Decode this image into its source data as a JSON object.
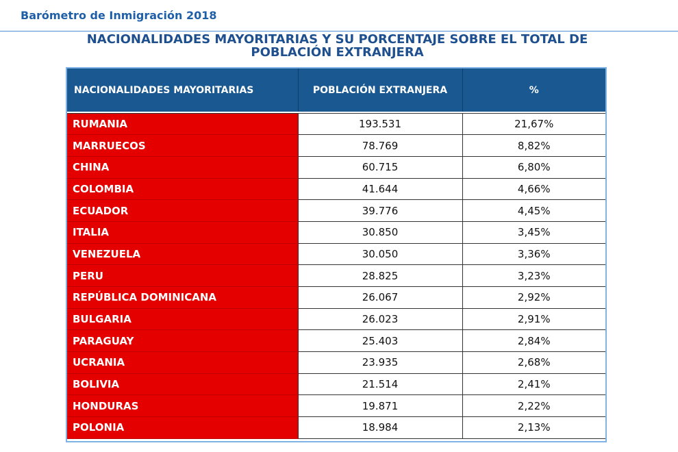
{
  "header": {
    "title": "Barómetro de Inmigración 2018"
  },
  "document": {
    "title_line1": "NACIONALIDADES MAYORITARIAS Y SU PORCENTAJE SOBRE EL TOTAL DE",
    "title_line2": "POBLACIÓN EXTRANJERA"
  },
  "table": {
    "headers": [
      "NACIONALIDADES MAYORITARIAS",
      "POBLACIÓN EXTRANJERA",
      "%"
    ],
    "rows": [
      {
        "nationality": "RUMANIA",
        "population": "193.531",
        "percent": "21,67%"
      },
      {
        "nationality": "MARRUECOS",
        "population": "78.769",
        "percent": "8,82%"
      },
      {
        "nationality": "CHINA",
        "population": "60.715",
        "percent": "6,80%"
      },
      {
        "nationality": "COLOMBIA",
        "population": "41.644",
        "percent": "4,66%"
      },
      {
        "nationality": "ECUADOR",
        "population": "39.776",
        "percent": "4,45%"
      },
      {
        "nationality": "ITALIA",
        "population": "30.850",
        "percent": "3,45%"
      },
      {
        "nationality": "VENEZUELA",
        "population": "30.050",
        "percent": "3,36%"
      },
      {
        "nationality": "PERU",
        "population": "28.825",
        "percent": "3,23%"
      },
      {
        "nationality": "REPÚBLICA DOMINICANA",
        "population": "26.067",
        "percent": "2,92%"
      },
      {
        "nationality": "BULGARIA",
        "population": "26.023",
        "percent": "2,91%"
      },
      {
        "nationality": "PARAGUAY",
        "population": "25.403",
        "percent": "2,84%"
      },
      {
        "nationality": "UCRANIA",
        "population": "23.935",
        "percent": "2,68%"
      },
      {
        "nationality": "BOLIVIA",
        "population": "21.514",
        "percent": "2,41%"
      },
      {
        "nationality": "HONDURAS",
        "population": "19.871",
        "percent": "2,22%"
      },
      {
        "nationality": "POLONIA",
        "population": "18.984",
        "percent": "2,13%"
      }
    ]
  },
  "colors": {
    "header_text": "#1f5fa8",
    "title_text": "#1e4f8e",
    "table_header_bg": "#195891",
    "nationality_bg": "#e50000"
  }
}
